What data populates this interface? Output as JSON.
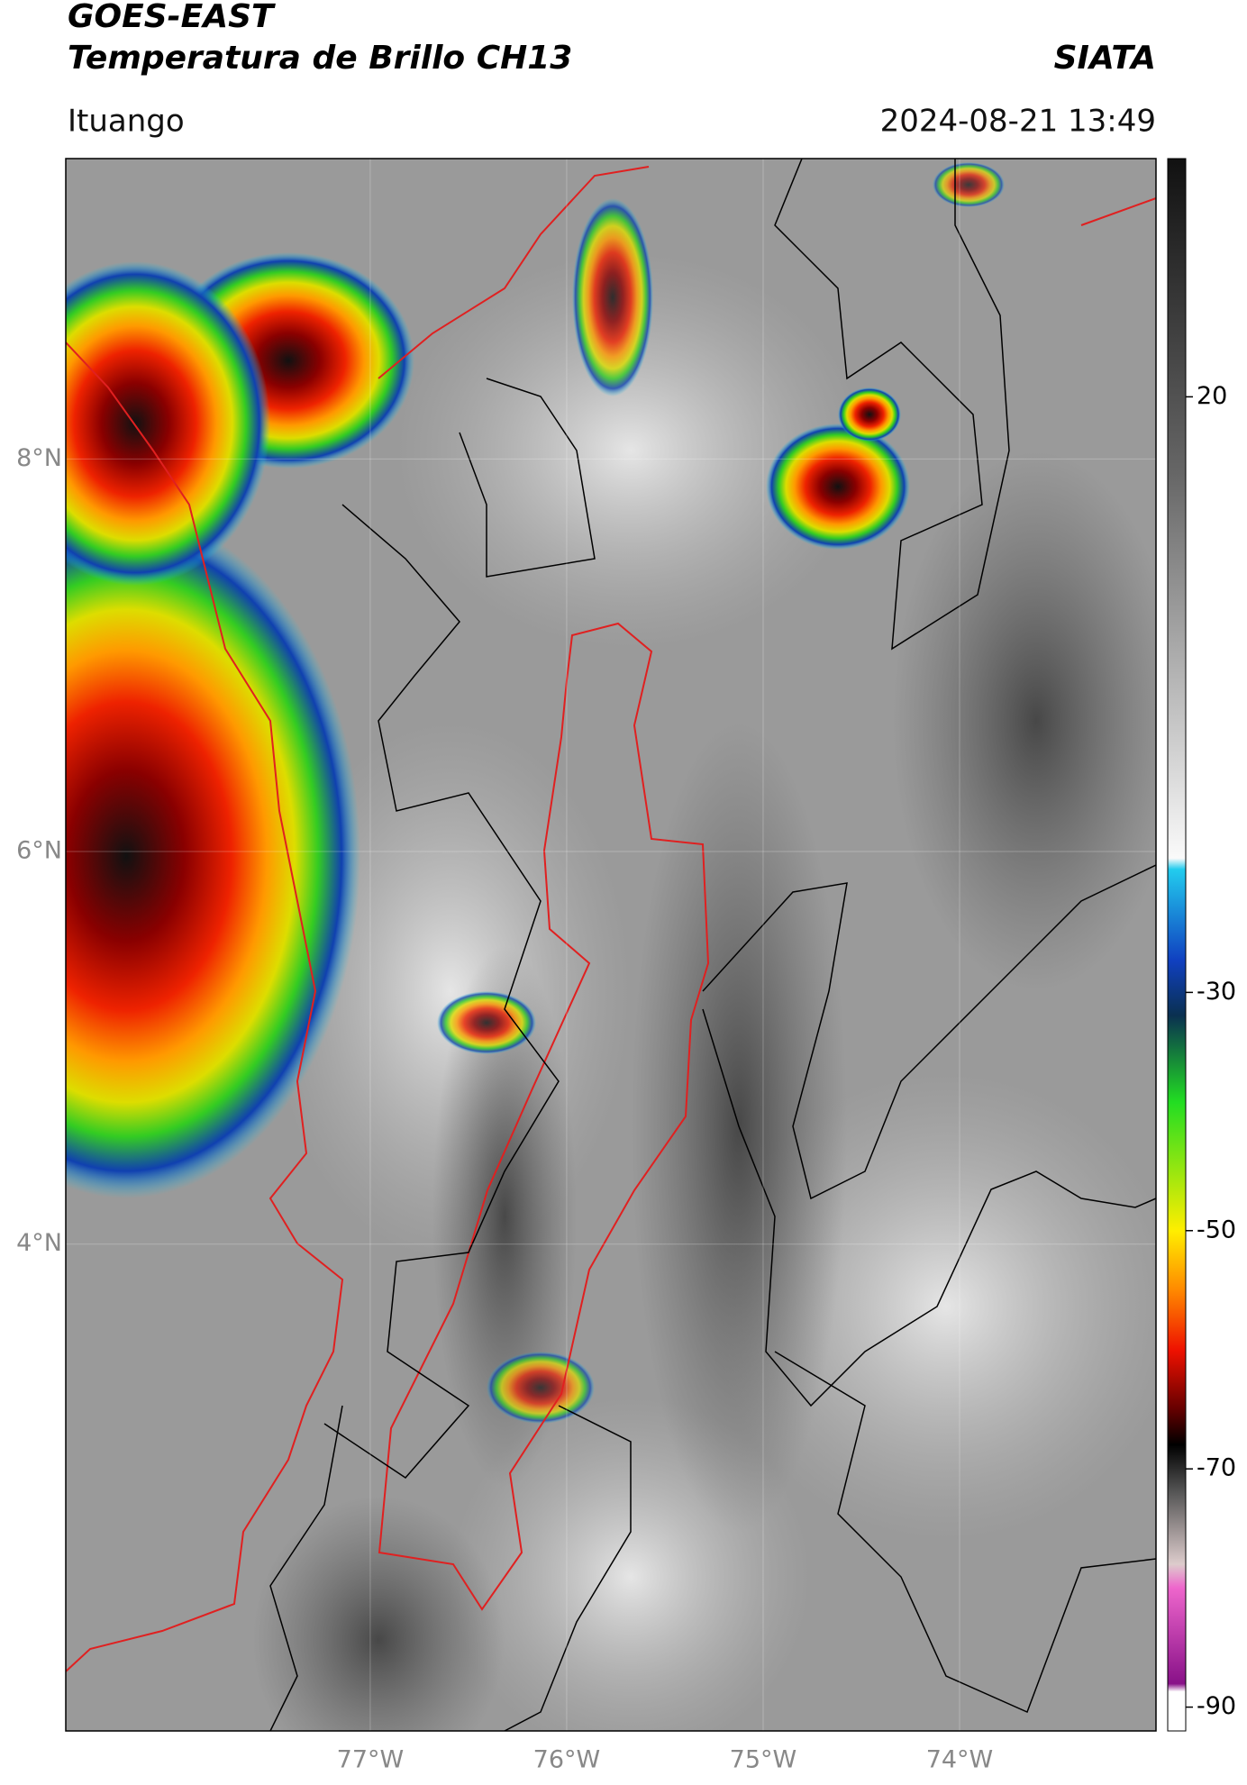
{
  "header": {
    "title": "GOES-EAST",
    "subtitle": "Temperatura de Brillo CH13",
    "source": "SIATA",
    "location": "Ituango",
    "datetime": "2024-08-21 13:49"
  },
  "map": {
    "lonlim": [
      -78.55,
      -73.0
    ],
    "latlim": [
      1.52,
      9.53
    ],
    "grid": true,
    "lat_ticks": [
      {
        "value": 8,
        "label": "8°N"
      },
      {
        "value": 6,
        "label": "6°N"
      },
      {
        "value": 4,
        "label": "4°N"
      }
    ],
    "lon_ticks": [
      {
        "value": -77,
        "label": "77°W"
      },
      {
        "value": -76,
        "label": "76°W"
      },
      {
        "value": -75,
        "label": "75°W"
      },
      {
        "value": -74,
        "label": "74°W"
      }
    ]
  },
  "colorbar": {
    "lim": [
      -92,
      40
    ],
    "ticks": [
      20,
      -30,
      -50,
      -70,
      -90
    ]
  }
}
